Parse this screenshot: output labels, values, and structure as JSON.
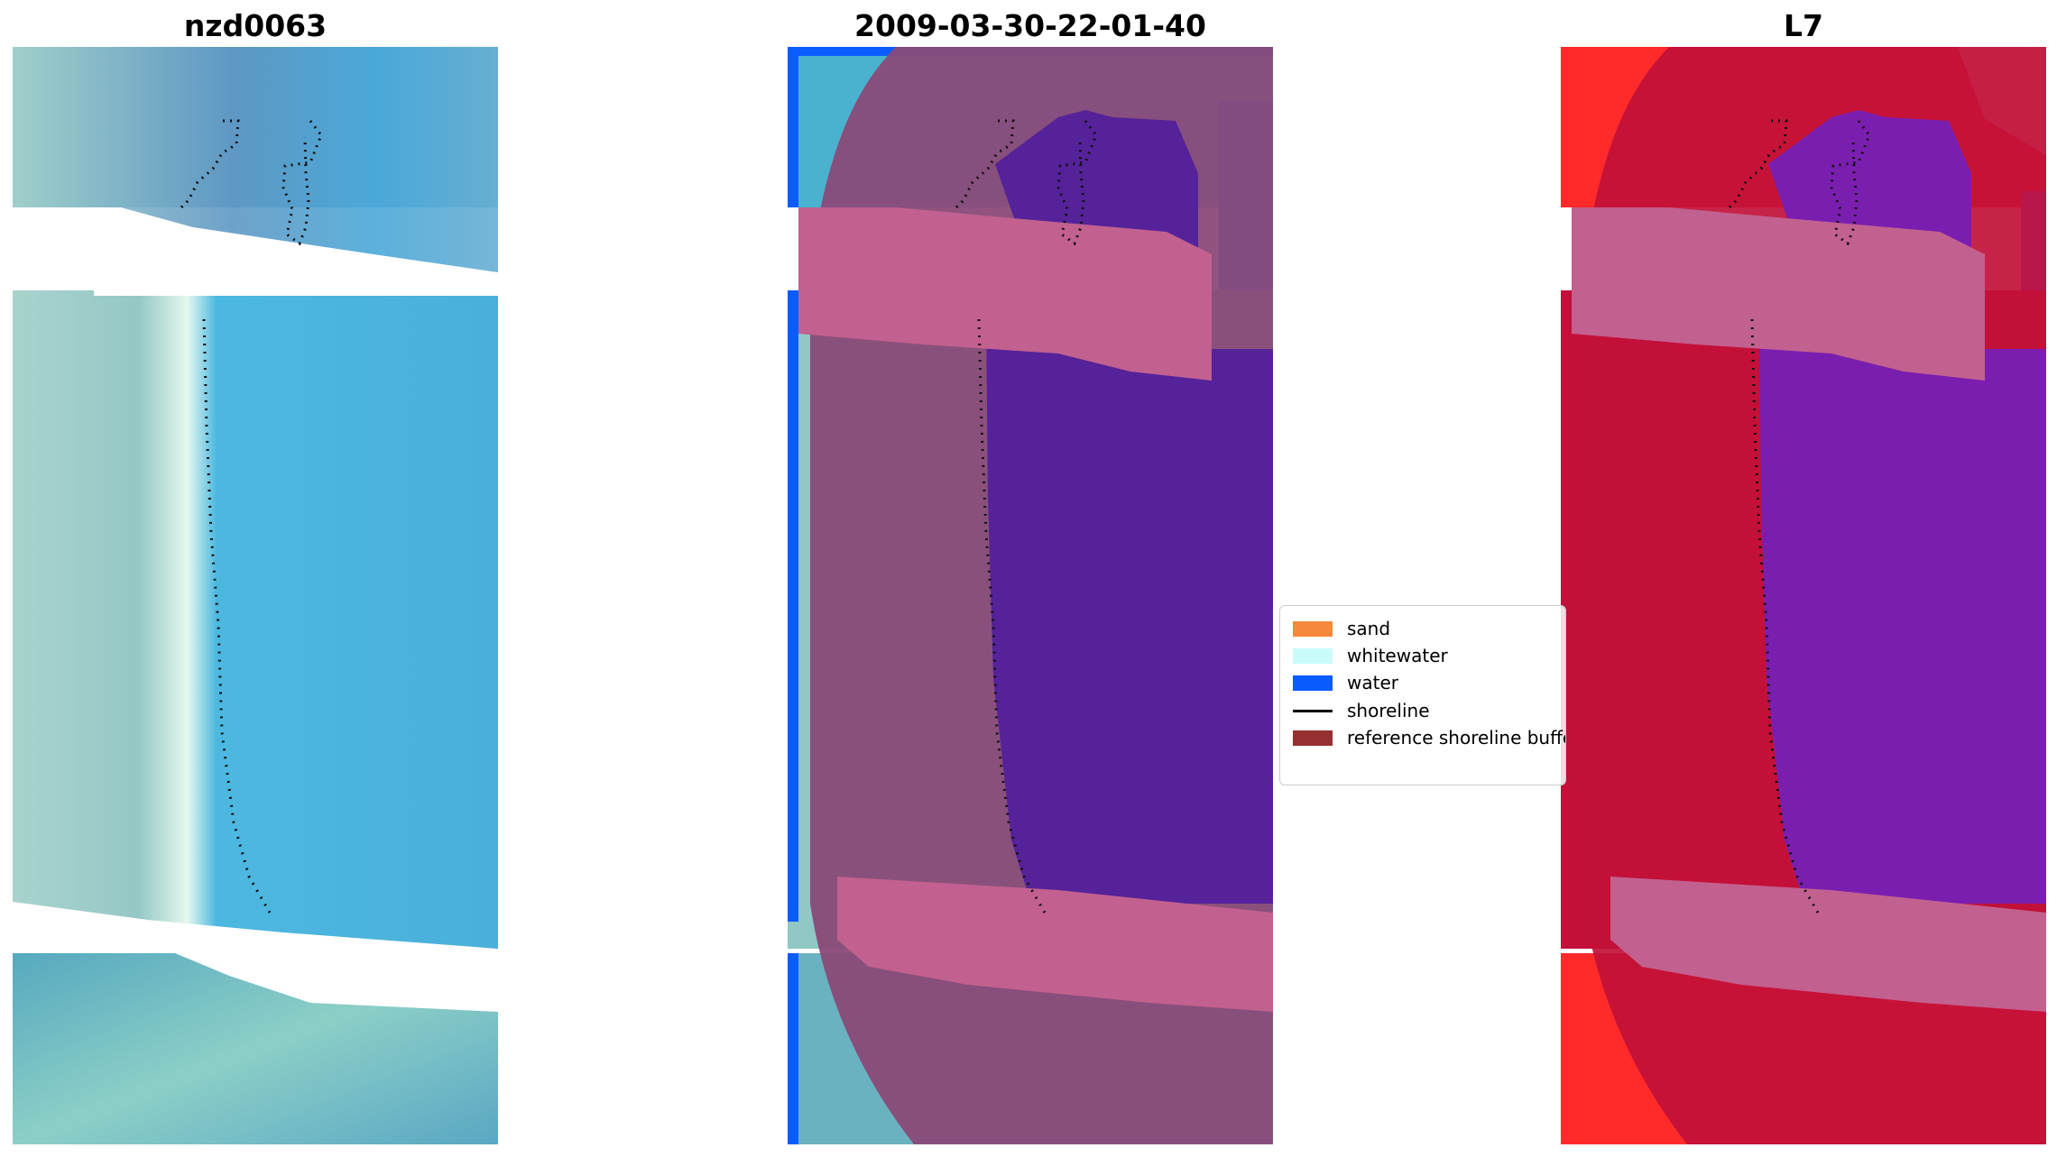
{
  "panels": [
    {
      "title": "nzd0063"
    },
    {
      "title": "2009-03-30-22-01-40"
    },
    {
      "title": "L7"
    }
  ],
  "legend": {
    "items": [
      {
        "label": "sand",
        "color": "#f5883a"
      },
      {
        "label": "whitewater",
        "color": "#c8fbf9"
      },
      {
        "label": "water",
        "color": "#0b5cff"
      },
      {
        "label": "shoreline",
        "color": "#000000"
      },
      {
        "label": "reference shoreline buffer",
        "color": "#962f30"
      }
    ]
  },
  "colors": {
    "nodata": "#ffffff",
    "rgb_water": "#4db4dc",
    "rgb_land": "#8ec6c6",
    "class_water": "#0b5cff",
    "buffer_overlay": "#c2608f",
    "land_overlay": "#8a4a78",
    "water_overlay": "#55229a",
    "ndwi_land": "#c2103a",
    "ndwi_water": "#7a1eb0",
    "ndwi_bright": "#ff2a2a",
    "ndwi_blue": "#4b5bf5"
  }
}
